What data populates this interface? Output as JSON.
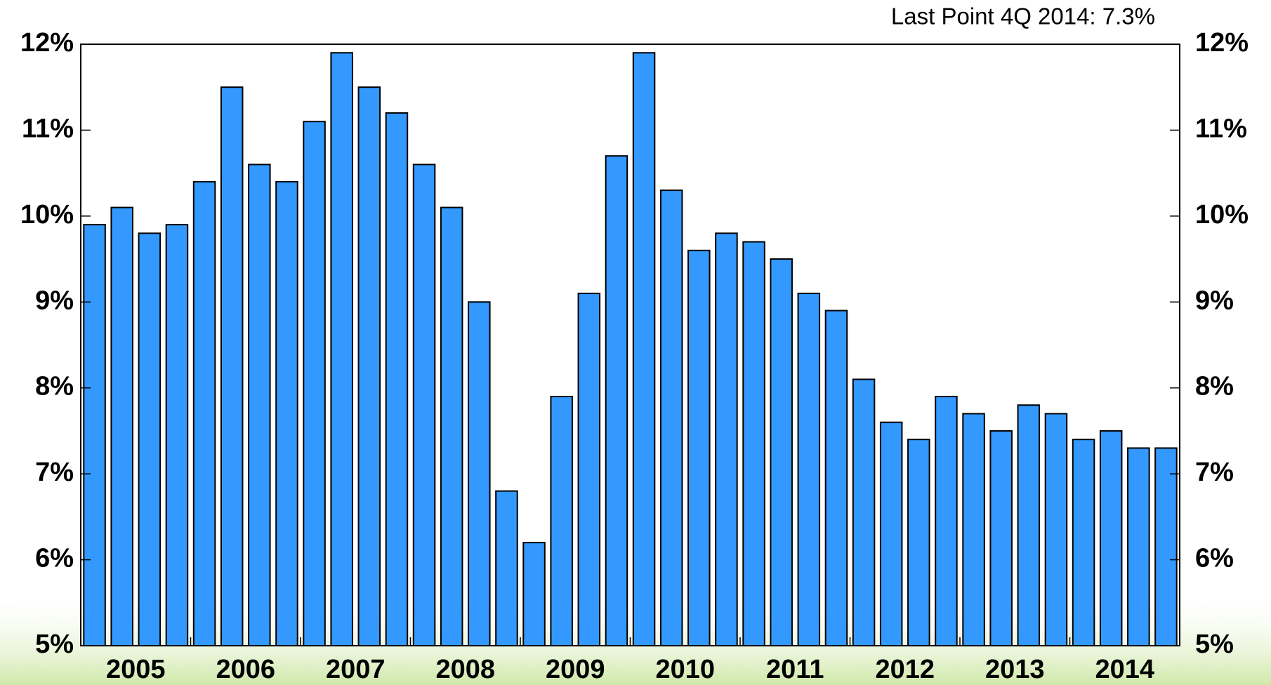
{
  "chart_data": {
    "type": "bar",
    "annotation": "Last Point 4Q 2014: 7.3%",
    "categories": [
      "2005",
      null,
      null,
      null,
      "2006",
      null,
      null,
      null,
      "2007",
      null,
      null,
      null,
      "2008",
      null,
      null,
      null,
      "2009",
      null,
      null,
      null,
      "2010",
      null,
      null,
      null,
      "2011",
      null,
      null,
      null,
      "2012",
      null,
      null,
      null,
      "2013",
      null,
      null,
      null,
      "2014",
      null,
      null,
      null
    ],
    "values": [
      9.9,
      10.1,
      9.8,
      9.9,
      10.4,
      11.5,
      10.6,
      10.4,
      11.1,
      11.9,
      11.5,
      11.2,
      10.6,
      10.1,
      9.0,
      6.8,
      6.2,
      7.9,
      9.1,
      10.7,
      11.9,
      10.3,
      9.6,
      9.8,
      9.7,
      9.5,
      9.1,
      8.9,
      8.1,
      7.6,
      7.4,
      7.9,
      7.7,
      7.5,
      7.8,
      7.7,
      7.4,
      7.5,
      7.3,
      7.3
    ],
    "color": "#3399ff",
    "ylim": [
      5,
      12
    ],
    "yticks": [
      {
        "value": 5,
        "label": "5%"
      },
      {
        "value": 6,
        "label": "6%"
      },
      {
        "value": 7,
        "label": "7%"
      },
      {
        "value": 8,
        "label": "8%"
      },
      {
        "value": 9,
        "label": "9%"
      },
      {
        "value": 10,
        "label": "10%"
      },
      {
        "value": 11,
        "label": "11%"
      },
      {
        "value": 12,
        "label": "12%"
      }
    ],
    "y2lim": [
      5,
      12
    ],
    "y2ticks": [
      {
        "value": 5,
        "label": "5%"
      },
      {
        "value": 6,
        "label": "6%"
      },
      {
        "value": 7,
        "label": "7%"
      },
      {
        "value": 8,
        "label": "8%"
      },
      {
        "value": 9,
        "label": "9%"
      },
      {
        "value": 10,
        "label": "10%"
      },
      {
        "value": 11,
        "label": "11%"
      },
      {
        "value": 12,
        "label": "12%"
      }
    ]
  }
}
